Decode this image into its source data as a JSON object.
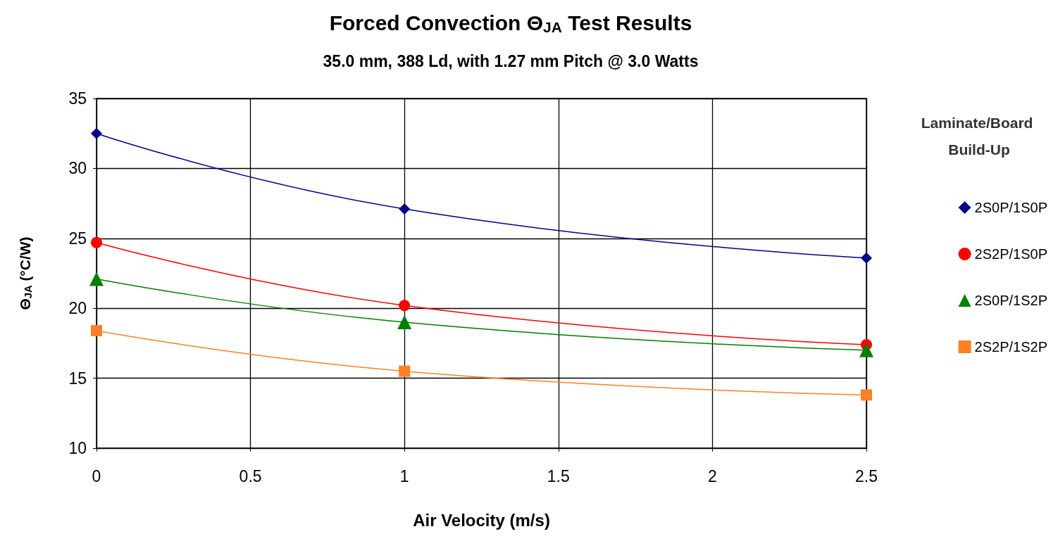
{
  "chart_data": {
    "type": "line",
    "title": "Forced Convection Θ$_{JA}$ Test Results",
    "subtitle": "35.0 mm, 388 Ld, with 1.27 mm Pitch @ 3.0 Watts",
    "xlabel": "Air Velocity (m/s)",
    "ylabel": "Θ$_{JA}$ (°C/W)",
    "legend_title": "Laminate/Board Build-Up",
    "x": [
      0,
      1,
      2.5
    ],
    "series": [
      {
        "name": "2S0P/1S0P",
        "color": "#00008b",
        "marker": "diamond",
        "values": [
          32.5,
          27.1,
          23.6
        ]
      },
      {
        "name": "2S2P/1S0P",
        "color": "#ff0000",
        "marker": "circle",
        "values": [
          24.7,
          20.2,
          17.4
        ]
      },
      {
        "name": "2S0P/1S2P",
        "color": "#008000",
        "marker": "triangle",
        "values": [
          22.1,
          19.0,
          17.0
        ]
      },
      {
        "name": "2S2P/1S2P",
        "color": "#ff7f27",
        "marker": "square",
        "values": [
          18.4,
          15.5,
          13.8
        ]
      }
    ],
    "xlim": [
      0,
      2.5
    ],
    "xticks": [
      0,
      0.5,
      1,
      1.5,
      2,
      2.5
    ],
    "ylim": [
      10,
      35
    ],
    "yticks": [
      10,
      15,
      20,
      25,
      30,
      35
    ],
    "grid": true,
    "legend": "right",
    "line_style": "solid"
  }
}
